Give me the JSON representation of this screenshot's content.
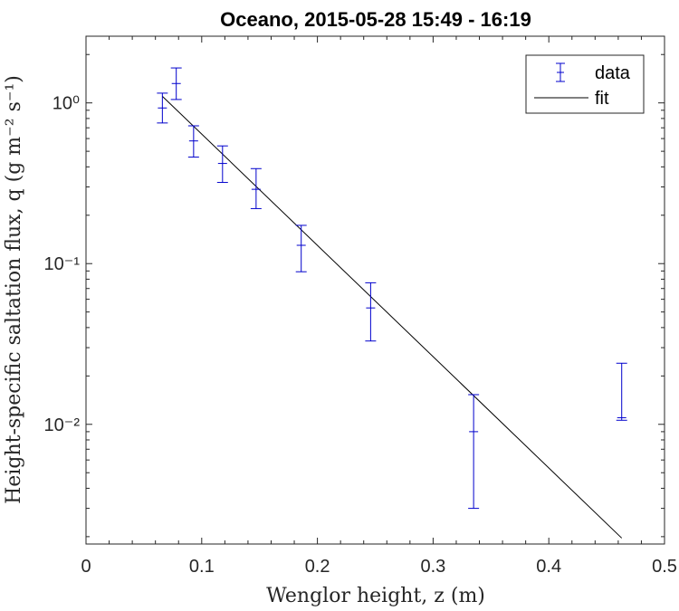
{
  "chart_data": {
    "type": "scatter",
    "title": "Oceano, 2015-05-28 15:49 - 16:19",
    "xlabel": "Wenglor height, z (m)",
    "ylabel": "Height-specific saltation flux, q (g m⁻² s⁻¹)",
    "xlim": [
      0,
      0.5
    ],
    "ylim": [
      0.0018,
      2.6
    ],
    "yscale": "log",
    "x_ticks": [
      0,
      0.1,
      0.2,
      0.3,
      0.4,
      0.5
    ],
    "x_tick_labels": [
      "0",
      "0.1",
      "0.2",
      "0.3",
      "0.4",
      "0.5"
    ],
    "y_ticks": [
      0.01,
      0.1,
      1
    ],
    "y_tick_labels": [
      "10⁻²",
      "10⁻¹",
      "10⁰"
    ],
    "grid": false,
    "legend_position": "top-right",
    "series": [
      {
        "name": "data",
        "style": "errorbar",
        "color": "#0000cc",
        "x": [
          0.066,
          0.078,
          0.093,
          0.118,
          0.147,
          0.186,
          0.246,
          0.335,
          0.463
        ],
        "y": [
          0.93,
          1.32,
          0.58,
          0.42,
          0.29,
          0.13,
          0.053,
          0.009,
          0.011
        ],
        "lower": [
          0.75,
          1.05,
          0.46,
          0.32,
          0.22,
          0.089,
          0.033,
          0.003,
          0.0106
        ],
        "upper": [
          1.15,
          1.65,
          0.72,
          0.54,
          0.39,
          0.173,
          0.076,
          0.0153,
          0.024
        ]
      },
      {
        "name": "fit",
        "style": "line",
        "color": "#000000",
        "x": [
          0.066,
          0.463
        ],
        "y": [
          1.1,
          0.00196
        ]
      }
    ]
  }
}
